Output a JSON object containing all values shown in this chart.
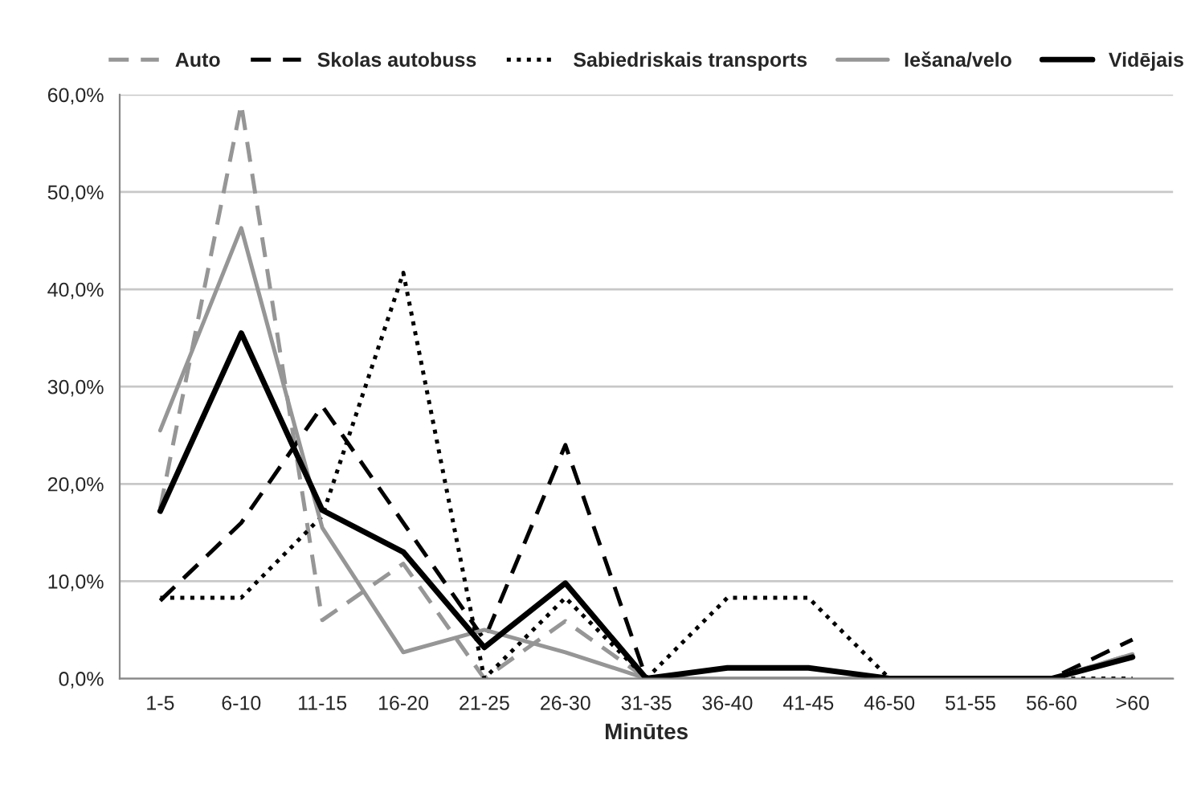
{
  "chart_data": {
    "type": "line",
    "xlabel": "Minūtes",
    "categories": [
      "1-5",
      "6-10",
      "11-15",
      "16-20",
      "21-25",
      "26-30",
      "31-35",
      "36-40",
      "41-45",
      "46-50",
      "51-55",
      "56-60",
      ">60"
    ],
    "series": [
      {
        "name": "Auto",
        "color": "#969696",
        "line_style": "dashed",
        "values": [
          17.5,
          59,
          6,
          11.8,
          0,
          5.9,
          0,
          0,
          0,
          0,
          0,
          0,
          2.5
        ]
      },
      {
        "name": "Skolas autobuss",
        "color": "#000000",
        "line_style": "dashed",
        "values": [
          8,
          16,
          28,
          16,
          4,
          24,
          0,
          0,
          0,
          0,
          0,
          0,
          4
        ]
      },
      {
        "name": "Sabiedriskais transports",
        "color": "#000000",
        "line_style": "dotted",
        "values": [
          8.3,
          8.3,
          16.7,
          41.7,
          0,
          8.3,
          0,
          8.3,
          8.3,
          0,
          0,
          0,
          0
        ]
      },
      {
        "name": "Iešana/velo",
        "color": "#969696",
        "line_style": "solid",
        "values": [
          25.5,
          46.3,
          15.5,
          2.7,
          5,
          2.7,
          0,
          0,
          0,
          0,
          0,
          0,
          2.5
        ]
      },
      {
        "name": "Vidējais",
        "color": "#000000",
        "line_style": "solid",
        "values": [
          17.2,
          35.5,
          17.3,
          13,
          3.2,
          9.8,
          0,
          1.1,
          1.1,
          0,
          0,
          0,
          2.2
        ]
      }
    ],
    "ylim": [
      0,
      60
    ],
    "yticks": [
      {
        "value": 0,
        "label": "0,0%"
      },
      {
        "value": 10,
        "label": "10,0%"
      },
      {
        "value": 20,
        "label": "20,0%"
      },
      {
        "value": 30,
        "label": "30,0%"
      },
      {
        "value": 40,
        "label": "40,0%"
      },
      {
        "value": 50,
        "label": "50,0%"
      },
      {
        "value": 60,
        "label": "60,0%"
      }
    ],
    "grid": "y",
    "legend": "top",
    "marker": "none"
  }
}
